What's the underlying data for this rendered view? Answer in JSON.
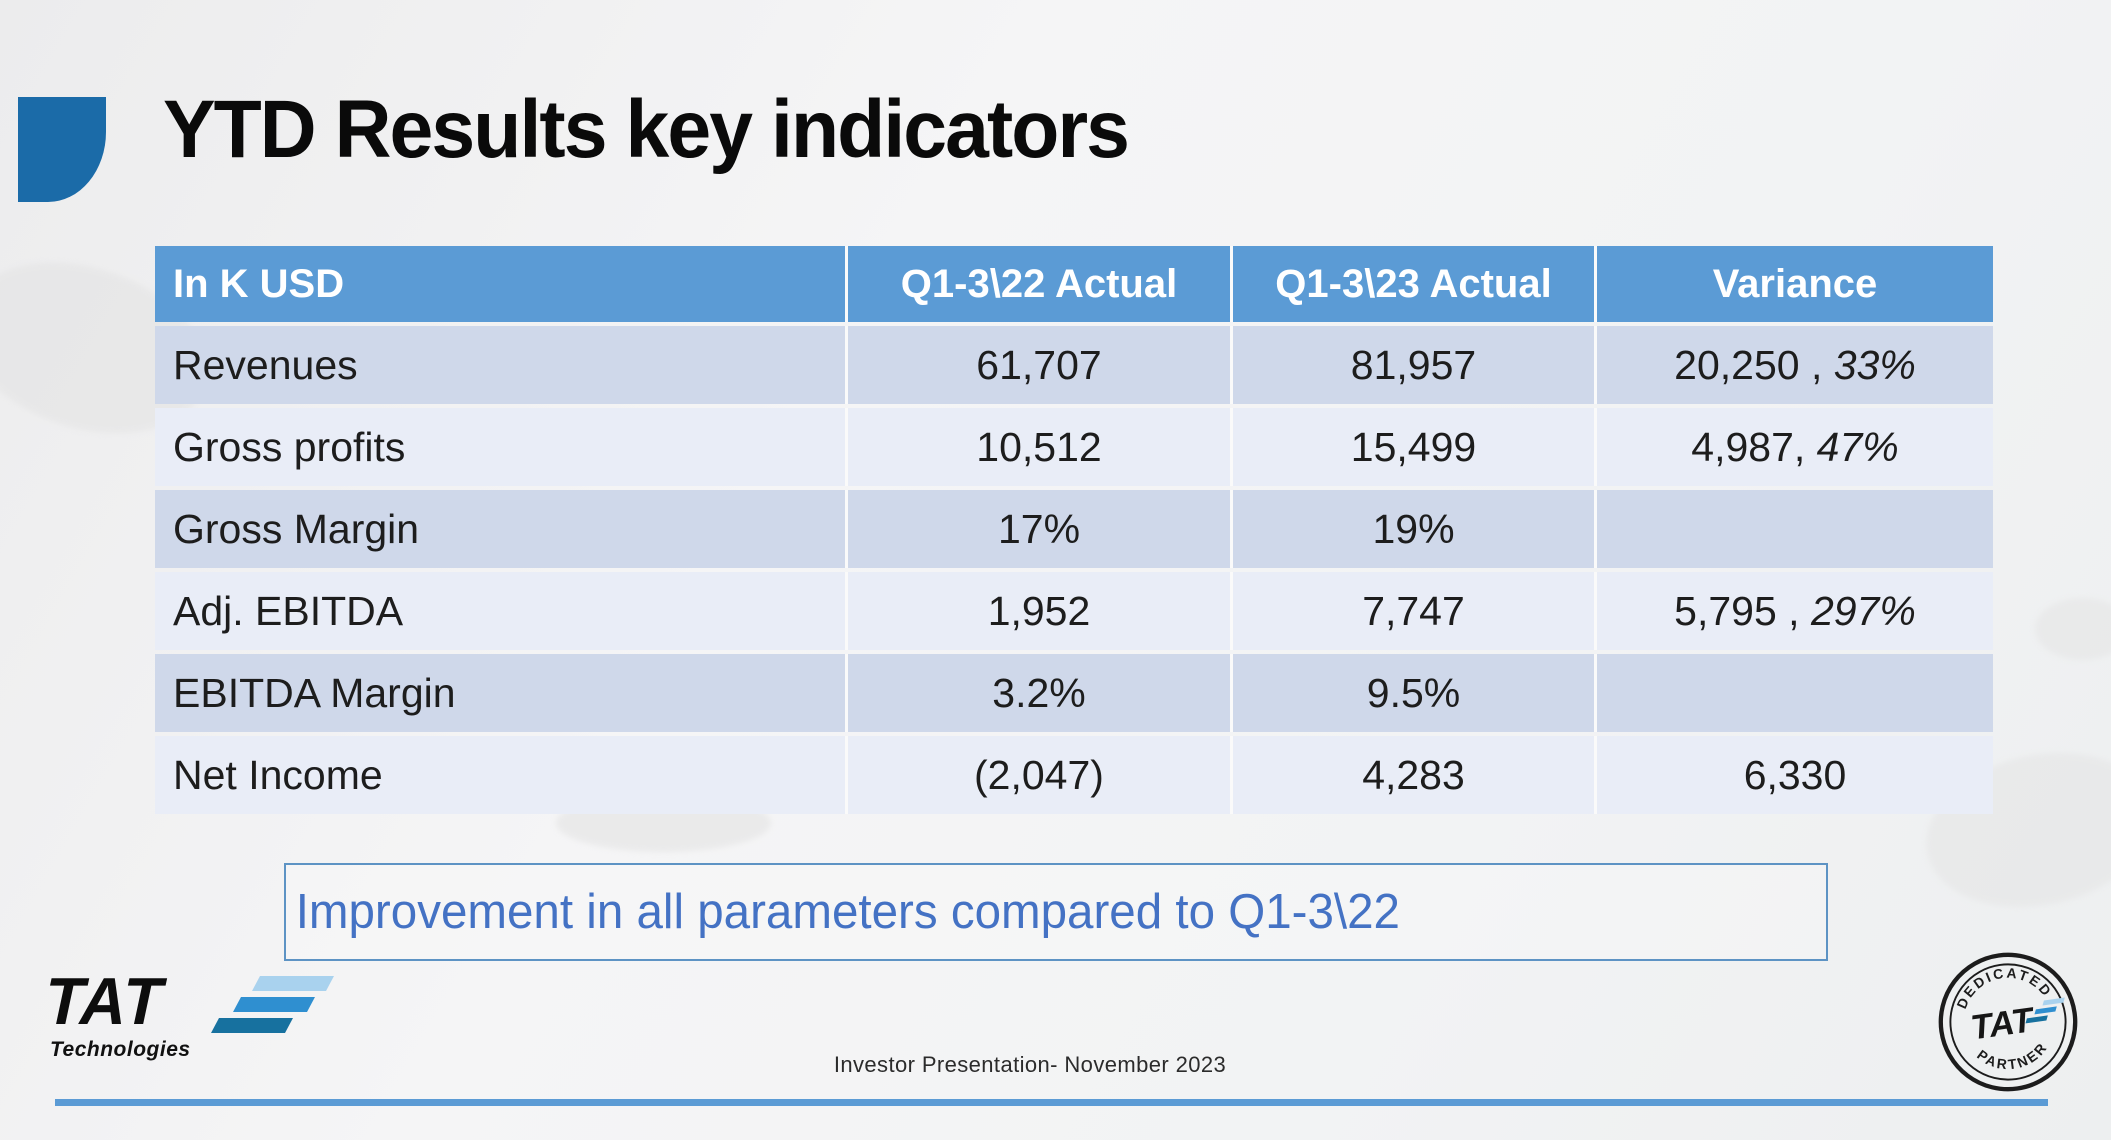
{
  "slide": {
    "title": "YTD Results key indicators",
    "callout": "Improvement in all parameters compared to Q1-3\\22",
    "footer": "Investor Presentation- November 2023"
  },
  "table": {
    "headers": [
      "In K USD",
      "Q1-3\\22 Actual",
      "Q1-3\\23 Actual",
      "Variance"
    ],
    "rows": [
      {
        "label": "Revenues",
        "q22": "61,707",
        "q23": "81,957",
        "variance_value": "20,250 , ",
        "variance_pct": "33%"
      },
      {
        "label": "Gross profits",
        "q22": "10,512",
        "q23": "15,499",
        "variance_value": "4,987, ",
        "variance_pct": "47%"
      },
      {
        "label": "Gross Margin",
        "q22": "17%",
        "q23": "19%",
        "variance_value": "",
        "variance_pct": ""
      },
      {
        "label": "Adj. EBITDA",
        "q22": "1,952",
        "q23": "7,747",
        "variance_value": "5,795 , ",
        "variance_pct": "297%"
      },
      {
        "label": "EBITDA Margin",
        "q22": "3.2%",
        "q23": "9.5%",
        "variance_value": "",
        "variance_pct": ""
      },
      {
        "label": "Net Income",
        "q22": "(2,047)",
        "q23": "4,283",
        "variance_value": "6,330",
        "variance_pct": ""
      }
    ]
  },
  "logo": {
    "brand": "TAT",
    "sub": "Technologies"
  },
  "stamp": {
    "top": "DEDICATED",
    "brand": "TAT",
    "bottom": "PARTNER"
  },
  "colors": {
    "header_blue": "#5b9bd5",
    "row_dark": "#cfd8ea",
    "row_light": "#e9edf7",
    "accent_text": "#4472c4",
    "callout_border": "#5d93c4",
    "corner_blue": "#1b6ba8",
    "bottom_line_blue": "#5b9bd5",
    "stripe_light": "#a9d2ee",
    "stripe_mid": "#2f8fd0",
    "stripe_dark": "#17719f"
  }
}
